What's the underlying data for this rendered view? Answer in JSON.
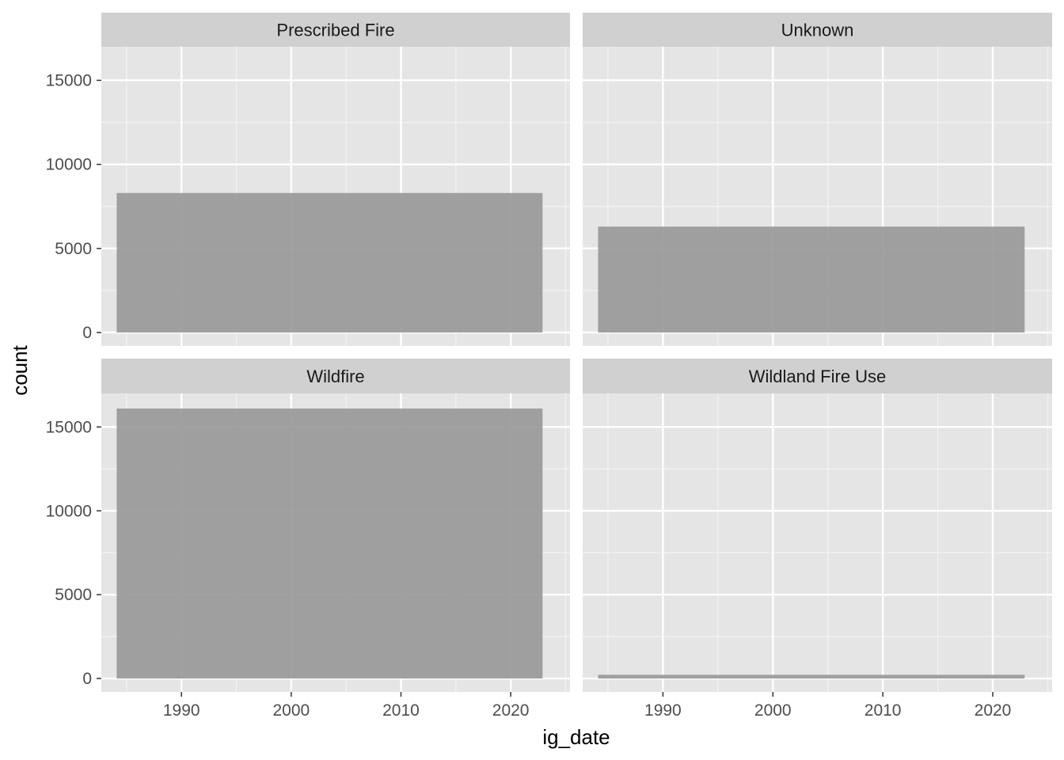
{
  "chart_data": {
    "type": "bar",
    "facet_layout": "2x2",
    "xlabel": "ig_date",
    "ylabel": "count",
    "xlim": [
      1982.7,
      2025.4
    ],
    "ylim": [
      -800,
      17000
    ],
    "x_ticks": [
      1990,
      2000,
      2010,
      2020
    ],
    "x_tick_labels": [
      "1990",
      "2000",
      "2010",
      "2020"
    ],
    "y_ticks": [
      0,
      5000,
      10000,
      15000
    ],
    "y_tick_labels": [
      "0",
      "5000",
      "10000",
      "15000"
    ],
    "grid": true,
    "colors": {
      "panel_bg": "#e5e5e5",
      "strip_bg": "#d0d0d0",
      "bar": "#999999",
      "grid": "#ffffff"
    },
    "facets": [
      {
        "label": "Prescribed Fire",
        "x_start": 1984.1,
        "x_end": 2022.9,
        "value": 8300
      },
      {
        "label": "Unknown",
        "x_start": 1984.1,
        "x_end": 2022.9,
        "value": 6300
      },
      {
        "label": "Wildfire",
        "x_start": 1984.1,
        "x_end": 2022.9,
        "value": 16100
      },
      {
        "label": "Wildland Fire Use",
        "x_start": 1984.1,
        "x_end": 2022.9,
        "value": 220
      }
    ]
  }
}
